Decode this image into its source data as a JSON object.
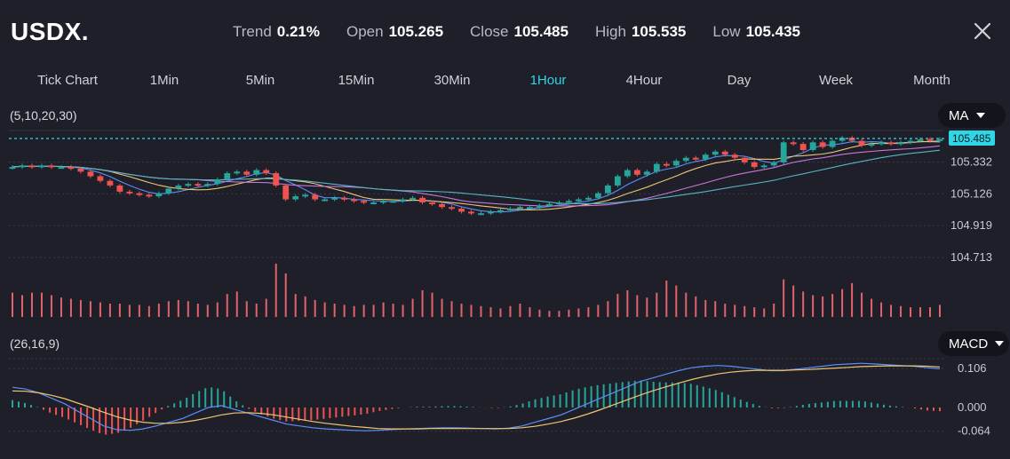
{
  "header": {
    "symbol": "USDX.",
    "stats": [
      {
        "label": "Trend",
        "value": "0.21%"
      },
      {
        "label": "Open",
        "value": "105.265"
      },
      {
        "label": "Close",
        "value": "105.485"
      },
      {
        "label": "High",
        "value": "105.535"
      },
      {
        "label": "Low",
        "value": "105.435"
      }
    ]
  },
  "timeframes": [
    "Tick Chart",
    "1Min",
    "5Min",
    "15Min",
    "30Min",
    "1Hour",
    "4Hour",
    "Day",
    "Week",
    "Month"
  ],
  "active_timeframe": "1Hour",
  "main_panel": {
    "params": "(5,10,20,30)",
    "indicator": "MA",
    "current_price_label": "105.485"
  },
  "macd_panel": {
    "params": "(26,16,9)",
    "indicator": "MACD"
  },
  "colors": {
    "background": "#1e1f29",
    "up": "#26a69a",
    "down": "#ef5350",
    "accent": "#2fd6e6",
    "ma5": "#5b8ff9",
    "ma10": "#f0c674",
    "ma20": "#c678dd",
    "ma30": "#56b6c2"
  },
  "chart_data": {
    "type": "candlestick",
    "price_axis_ticks": [
      105.332,
      105.126,
      104.919,
      104.713
    ],
    "current_price": 105.485,
    "price_range": [
      104.713,
      105.485
    ],
    "closes": [
      105.3,
      105.31,
      105.3,
      105.31,
      105.3,
      105.3,
      105.29,
      105.27,
      105.24,
      105.21,
      105.18,
      105.14,
      105.13,
      105.12,
      105.11,
      105.13,
      105.16,
      105.18,
      105.19,
      105.18,
      105.19,
      105.22,
      105.26,
      105.27,
      105.25,
      105.28,
      105.26,
      105.18,
      105.09,
      105.11,
      105.12,
      105.09,
      105.09,
      105.1,
      105.09,
      105.08,
      105.07,
      105.07,
      105.08,
      105.08,
      105.09,
      105.1,
      105.07,
      105.06,
      105.04,
      105.03,
      105.01,
      105.0,
      105.0,
      105.01,
      105.02,
      105.03,
      105.04,
      105.04,
      105.05,
      105.06,
      105.07,
      105.08,
      105.09,
      105.1,
      105.13,
      105.18,
      105.24,
      105.28,
      105.25,
      105.27,
      105.32,
      105.31,
      105.34,
      105.36,
      105.35,
      105.38,
      105.4,
      105.38,
      105.36,
      105.33,
      105.3,
      105.31,
      105.33,
      105.46,
      105.45,
      105.41,
      105.46,
      105.43,
      105.47,
      105.49,
      105.47,
      105.44,
      105.45,
      105.46,
      105.45,
      105.46,
      105.47,
      105.48,
      105.47,
      105.48
    ],
    "volume": [
      40,
      36,
      40,
      40,
      36,
      32,
      30,
      28,
      26,
      24,
      22,
      22,
      20,
      20,
      18,
      22,
      26,
      28,
      26,
      22,
      20,
      24,
      38,
      42,
      26,
      22,
      30,
      88,
      72,
      38,
      34,
      28,
      24,
      22,
      20,
      18,
      20,
      20,
      24,
      22,
      20,
      30,
      44,
      40,
      30,
      26,
      22,
      20,
      18,
      16,
      14,
      18,
      22,
      16,
      12,
      10,
      10,
      12,
      14,
      16,
      20,
      26,
      38,
      44,
      36,
      32,
      40,
      60,
      52,
      40,
      34,
      28,
      26,
      22,
      20,
      18,
      16,
      14,
      22,
      62,
      52,
      42,
      36,
      34,
      38,
      46,
      56,
      40,
      30,
      24,
      20,
      18,
      16,
      16,
      16,
      20
    ],
    "macd_axis_ticks": [
      0.106,
      0.0,
      -0.064
    ],
    "macd_line": [
      0.055,
      0.05,
      0.04,
      0.025,
      0.01,
      -0.01,
      -0.03,
      -0.05,
      -0.06,
      -0.062,
      -0.058,
      -0.05,
      -0.04,
      -0.03,
      -0.015,
      0.0,
      0.005,
      -0.005,
      -0.015,
      -0.025,
      -0.035,
      -0.045,
      -0.05,
      -0.055,
      -0.058,
      -0.06,
      -0.062,
      -0.063,
      -0.062,
      -0.06,
      -0.058,
      -0.057,
      -0.056,
      -0.055,
      -0.055,
      -0.056,
      -0.057,
      -0.058,
      -0.056,
      -0.05,
      -0.04,
      -0.03,
      -0.02,
      -0.005,
      0.01,
      0.025,
      0.04,
      0.055,
      0.07,
      0.08,
      0.09,
      0.1,
      0.108,
      0.112,
      0.114,
      0.112,
      0.108,
      0.104,
      0.1,
      0.1,
      0.104,
      0.108,
      0.112,
      0.116,
      0.118,
      0.12,
      0.118,
      0.116,
      0.114,
      0.112,
      0.108,
      0.105
    ],
    "signal_line": [
      0.045,
      0.044,
      0.04,
      0.033,
      0.024,
      0.012,
      0.0,
      -0.013,
      -0.025,
      -0.034,
      -0.04,
      -0.043,
      -0.043,
      -0.04,
      -0.035,
      -0.028,
      -0.02,
      -0.015,
      -0.014,
      -0.016,
      -0.02,
      -0.026,
      -0.032,
      -0.038,
      -0.043,
      -0.047,
      -0.051,
      -0.054,
      -0.057,
      -0.058,
      -0.058,
      -0.058,
      -0.057,
      -0.057,
      -0.057,
      -0.057,
      -0.057,
      -0.057,
      -0.057,
      -0.055,
      -0.051,
      -0.045,
      -0.038,
      -0.029,
      -0.018,
      -0.006,
      0.007,
      0.02,
      0.033,
      0.045,
      0.056,
      0.066,
      0.076,
      0.084,
      0.091,
      0.096,
      0.099,
      0.101,
      0.101,
      0.101,
      0.102,
      0.103,
      0.105,
      0.107,
      0.109,
      0.111,
      0.112,
      0.113,
      0.113,
      0.113,
      0.112,
      0.11
    ]
  }
}
